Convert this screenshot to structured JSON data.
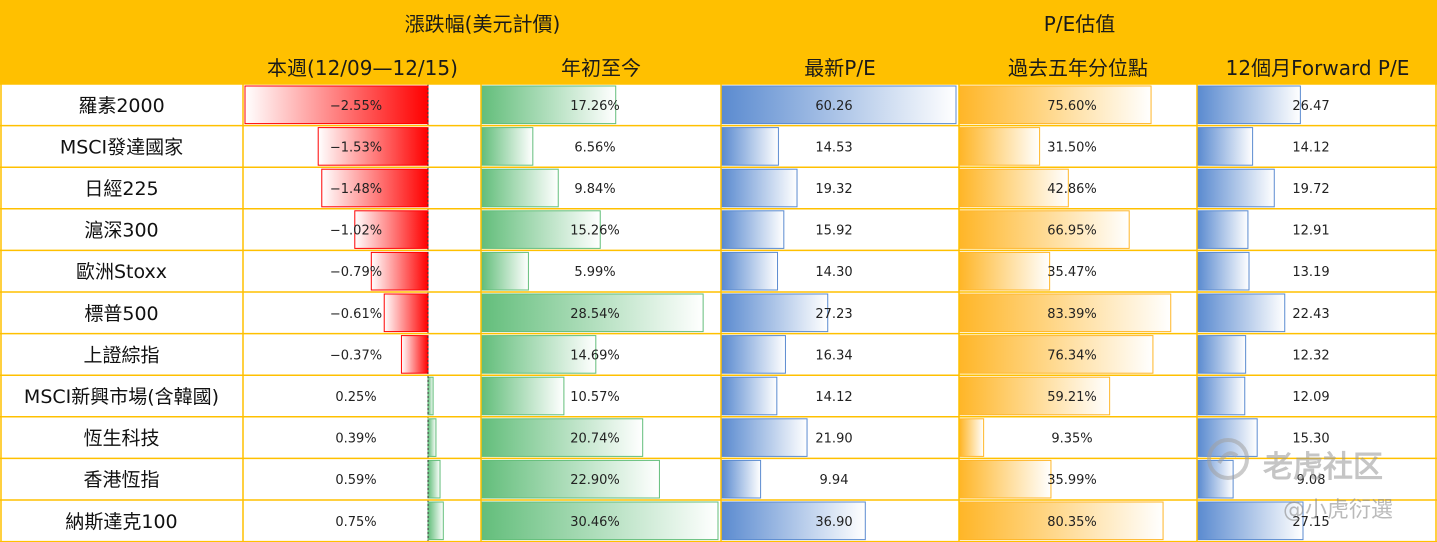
{
  "header": {
    "group_change": "漲跌幅(美元計價)",
    "group_pe": "P/E估值",
    "columns": [
      "本週(12/09—12/15)",
      "年初至今",
      "最新P/E",
      "過去五年分位點",
      "12個月Forward P/E"
    ]
  },
  "colors": {
    "header_bg": "#ffc000",
    "border": "#ffc000",
    "negative": "#ff0000",
    "positive": "#63be7b",
    "pe_bar": "#5b8bd0",
    "percentile_bar": "#ffb628"
  },
  "chart_data": {
    "type": "table",
    "rows": [
      {
        "name": "羅素2000",
        "week": "-2.55%",
        "ytd": "17.26%",
        "pe": "60.26",
        "pct": "75.60%",
        "fpe": "26.47"
      },
      {
        "name": "MSCI發達國家",
        "week": "-1.53%",
        "ytd": "6.56%",
        "pe": "14.53",
        "pct": "31.50%",
        "fpe": "14.12"
      },
      {
        "name": "日經225",
        "week": "-1.48%",
        "ytd": "9.84%",
        "pe": "19.32",
        "pct": "42.86%",
        "fpe": "19.72"
      },
      {
        "name": "滬深300",
        "week": "-1.02%",
        "ytd": "15.26%",
        "pe": "15.92",
        "pct": "66.95%",
        "fpe": "12.91"
      },
      {
        "name": "歐洲Stoxx",
        "week": "-0.79%",
        "ytd": "5.99%",
        "pe": "14.30",
        "pct": "35.47%",
        "fpe": "13.19"
      },
      {
        "name": "標普500",
        "week": "-0.61%",
        "ytd": "28.54%",
        "pe": "27.23",
        "pct": "83.39%",
        "fpe": "22.43"
      },
      {
        "name": "上證綜指",
        "week": "-0.37%",
        "ytd": "14.69%",
        "pe": "16.34",
        "pct": "76.34%",
        "fpe": "12.32"
      },
      {
        "name": "MSCI新興市場(含韓國)",
        "week": "0.25%",
        "ytd": "10.57%",
        "pe": "14.12",
        "pct": "59.21%",
        "fpe": "12.09"
      },
      {
        "name": "恆生科技",
        "week": "0.39%",
        "ytd": "20.74%",
        "pe": "21.90",
        "pct": "9.35%",
        "fpe": "15.30"
      },
      {
        "name": "香港恆指",
        "week": "0.59%",
        "ytd": "22.90%",
        "pe": "9.94",
        "pct": "35.99%",
        "fpe": "9.08"
      },
      {
        "name": "納斯達克100",
        "week": "0.75%",
        "ytd": "30.46%",
        "pe": "36.90",
        "pct": "80.35%",
        "fpe": "27.15"
      }
    ]
  },
  "watermark": {
    "brand": "老虎社区",
    "handle": "@小虎衍選"
  }
}
